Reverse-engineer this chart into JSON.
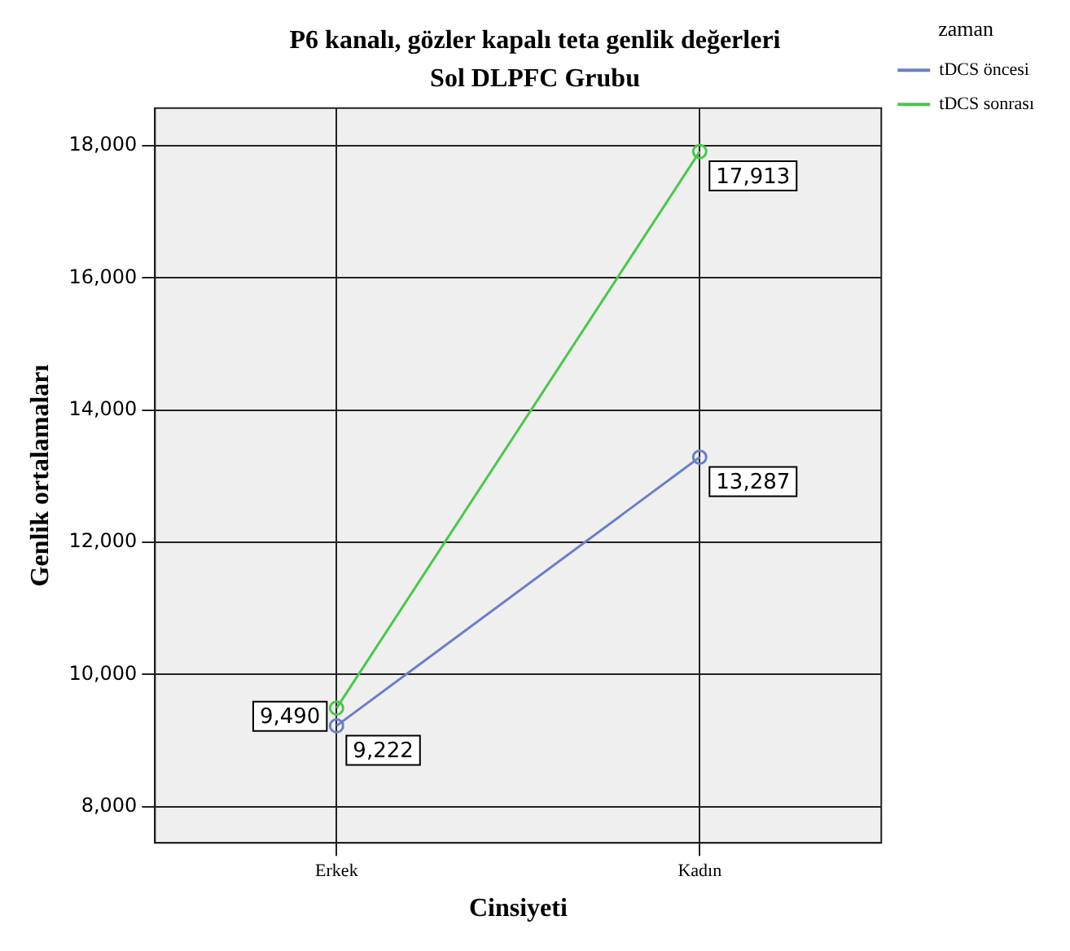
{
  "chart_data": {
    "type": "line",
    "title": "P6 kanalı, gözler kapalı teta genlik değerleri",
    "subtitle": "Sol DLPFC Grubu",
    "xlabel": "Cinsiyeti",
    "ylabel": "Genlik ortalamaları",
    "legend_title": "zaman",
    "categories": [
      "Erkek",
      "Kadın"
    ],
    "series": [
      {
        "name": "tDCS öncesi",
        "color": "#6a7fc7",
        "values": [
          9222,
          13287
        ],
        "value_labels": [
          "9,222",
          "13,287"
        ]
      },
      {
        "name": "tDCS sonrası",
        "color": "#4cc64c",
        "values": [
          9490,
          17913
        ],
        "value_labels": [
          "9,490",
          "17,913"
        ]
      }
    ],
    "ylim": [
      7450,
      18570
    ],
    "yticks": [
      {
        "value": 8000,
        "label": "8,000"
      },
      {
        "value": 10000,
        "label": "10,000"
      },
      {
        "value": 12000,
        "label": "12,000"
      },
      {
        "value": 14000,
        "label": "14,000"
      },
      {
        "value": 16000,
        "label": "16,000"
      },
      {
        "value": 18000,
        "label": "18,000"
      }
    ],
    "grid": true,
    "legend": "top right",
    "marker": "circle",
    "line_style": "solid"
  }
}
